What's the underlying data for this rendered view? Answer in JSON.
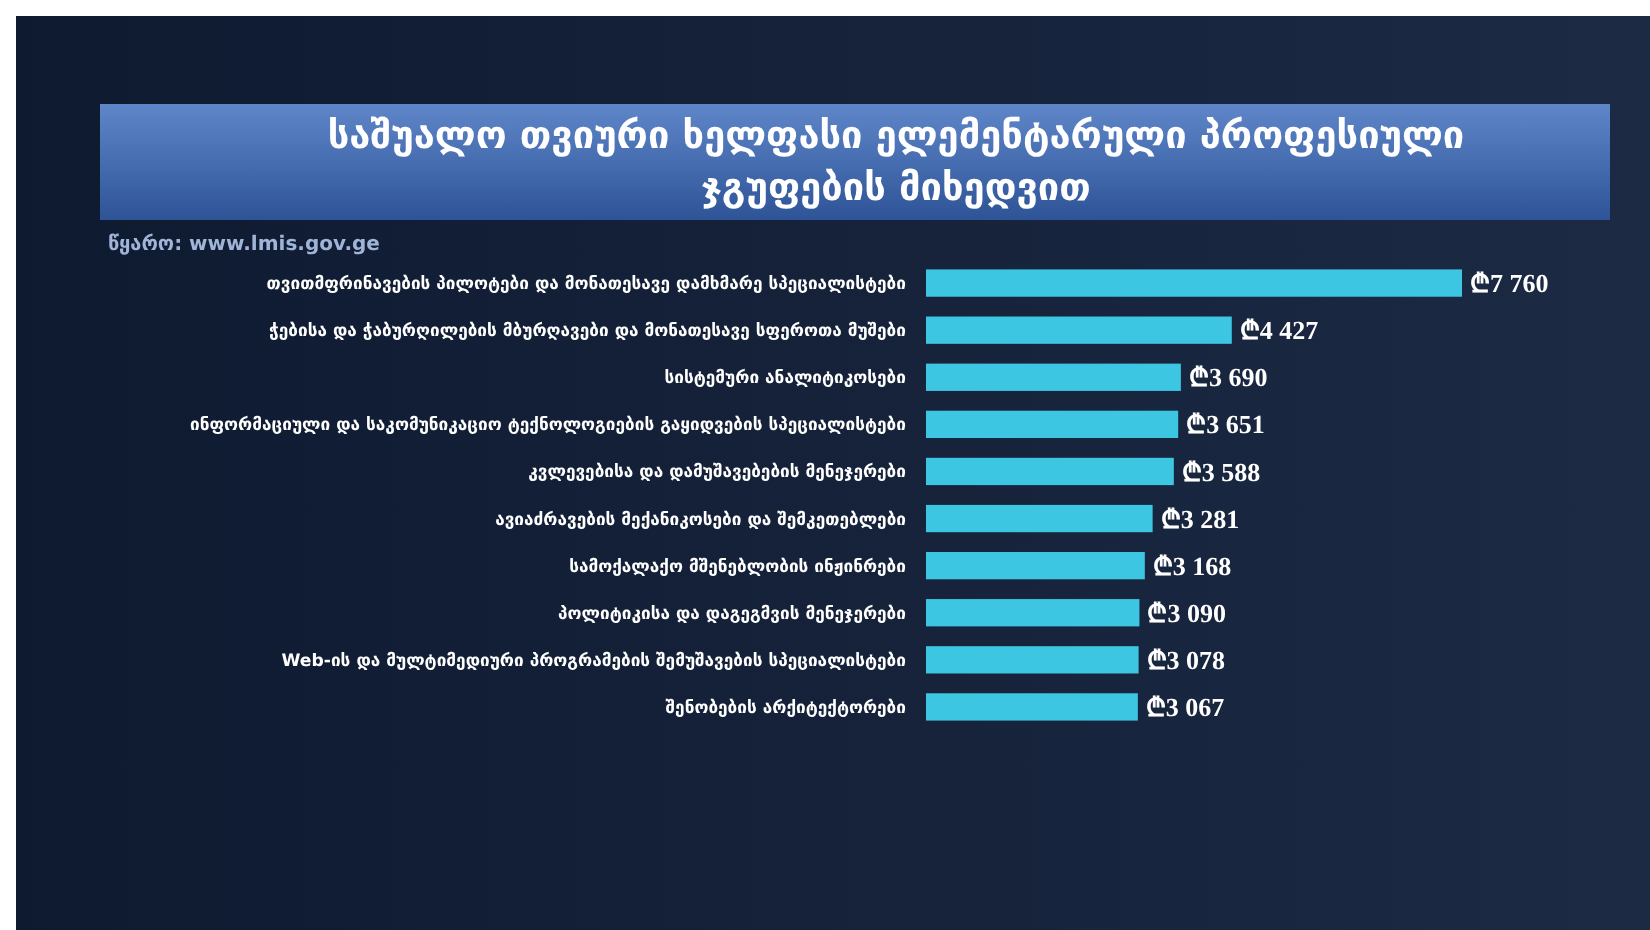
{
  "chart_data": {
    "type": "bar",
    "orientation": "horizontal",
    "title": "საშუალო თვიური ხელფასი ელემენტარული პროფესიული ჯგუფების მიხედვით",
    "annotations": [
      "წყარო: www.lmis.gov.ge"
    ],
    "categories": [
      "თვითმფრინავების პილოტები და მონათესავე დამხმარე სპეციალისტები",
      "ჭებისა და ჭაბურღილების მბურღავები და მონათესავე სფეროთა მუშები",
      "სისტემური ანალიტიკოსები",
      "ინფორმაციული და საკომუნიკაციო ტექნოლოგიების გაყიდვების სპეციალისტები",
      "კვლევებისა და დამუშავებების მენეჯერები",
      "ავიაძრავების მექანიკოსები და შემკეთებლები",
      "სამოქალაქო მშენებლობის ინჟინრები",
      "პოლიტიკისა და დაგეგმვის მენეჯერები",
      "Web-ის და მულტიმედიური პროგრამების შემუშავების სპეციალისტები",
      "შენობების არქიტექტორები"
    ],
    "values": [
      7760,
      4427,
      3690,
      3651,
      3588,
      3281,
      3168,
      3090,
      3078,
      3067
    ],
    "value_labels": [
      "₾7 760",
      "₾4 427",
      "₾3 690",
      "₾3 651",
      "₾3 588",
      "₾3 281",
      "₾3 168",
      "₾3 090",
      "₾3 078",
      "₾3 067"
    ],
    "color": "#3cc6e2"
  }
}
